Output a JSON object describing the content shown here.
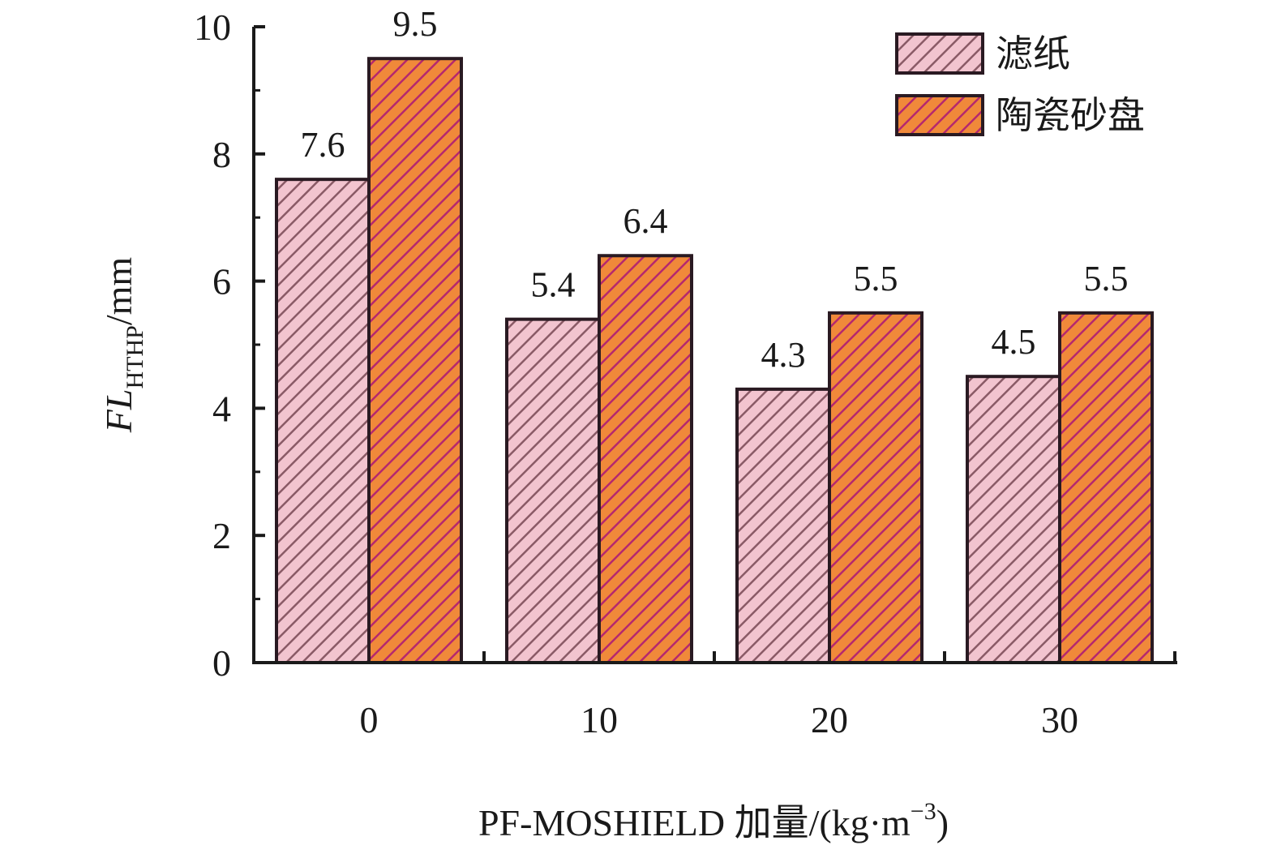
{
  "chart_data": {
    "type": "bar",
    "categories": [
      "0",
      "10",
      "20",
      "30"
    ],
    "series": [
      {
        "name": "滤纸",
        "values": [
          7.6,
          5.4,
          4.3,
          4.5
        ],
        "color": "#f2c4cf",
        "hatch": "#8a5a66"
      },
      {
        "name": "陶瓷砂盘",
        "values": [
          9.5,
          6.4,
          5.5,
          5.5
        ],
        "color": "#f0893a",
        "hatch": "#b5286e"
      }
    ],
    "data_labels": [
      [
        "7.6",
        "5.4",
        "4.3",
        "4.5"
      ],
      [
        "9.5",
        "6.4",
        "5.5",
        "5.5"
      ]
    ],
    "ylim": [
      0,
      10
    ],
    "yticks": [
      "0",
      "2",
      "4",
      "6",
      "8",
      "10"
    ],
    "ylabel": {
      "main": "FL",
      "sub": "HTHP",
      "rest": "/mm"
    },
    "xlabel": {
      "main": "PF-MOSHIELD 加量/(kg·m",
      "sup": "−3",
      "close": ")"
    },
    "legend_position": "top-right",
    "grid": false
  }
}
